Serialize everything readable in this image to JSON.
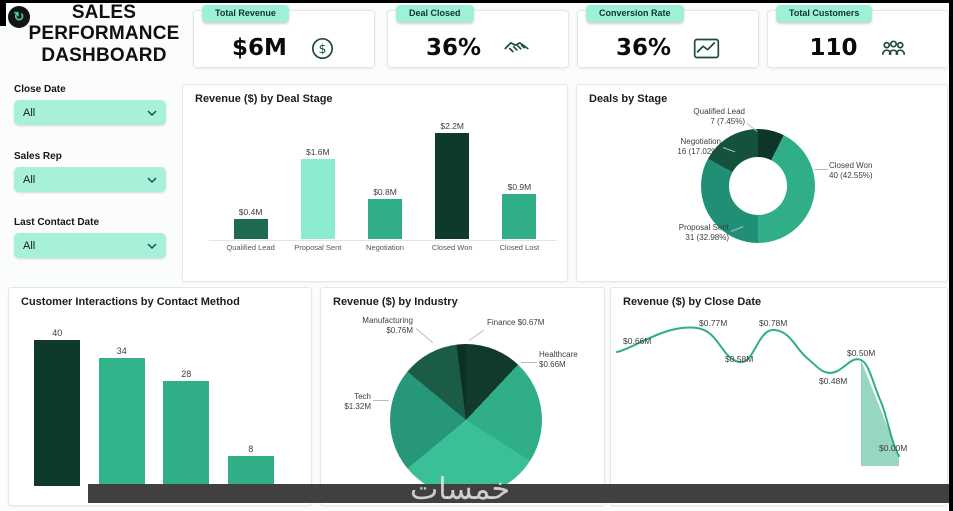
{
  "page": {
    "watermark": "خمسات"
  },
  "header": {
    "logo_glyph": "↻",
    "title_lines": [
      "SALES",
      "PERFORMANCE",
      "DASHBOARD"
    ]
  },
  "kpis": [
    {
      "label": "Total Revenue",
      "value": "$6M",
      "icon": "dollar-circle-icon"
    },
    {
      "label": "Deal Closed",
      "value": "36%",
      "icon": "handshake-icon"
    },
    {
      "label": "Conversion Rate",
      "value": "36%",
      "icon": "trend-line-icon"
    },
    {
      "label": "Total Customers",
      "value": "110",
      "icon": "people-icon"
    }
  ],
  "filters": [
    {
      "label": "Close Date",
      "value": "All"
    },
    {
      "label": "Sales Rep",
      "value": "All"
    },
    {
      "label": "Last Contact Date",
      "value": "All"
    }
  ],
  "theme": {
    "accent_mint": "#9ff0d8",
    "accent_dark_green": "#0d3a2d",
    "accent_green": "#2fae88",
    "accent_light_mint": "#8debcf"
  },
  "chart_data": [
    {
      "id": "revenue_by_deal_stage",
      "type": "bar",
      "title": "Revenue ($) by Deal Stage",
      "categories": [
        "Qualified Lead",
        "Proposal Sent",
        "Negotiation",
        "Closed Won",
        "Closed Lost"
      ],
      "values": [
        0.4,
        1.6,
        0.8,
        2.2,
        0.9
      ],
      "value_labels": [
        "$0.4M",
        "$1.6M",
        "$0.8M",
        "$2.2M",
        "$0.9M"
      ],
      "unit": "$M",
      "ylim": [
        0,
        2.35
      ],
      "bar_colors": [
        "#1c6b52",
        "#8debcf",
        "#2fae88",
        "#0d3a2d",
        "#2fae88"
      ]
    },
    {
      "id": "deals_by_stage",
      "type": "donut",
      "title": "Deals by Stage",
      "slices": [
        {
          "label": "Qualified Lead",
          "value": 7,
          "pct": 7.45,
          "value_text": "7 (7.45%)",
          "color": "#0d352a"
        },
        {
          "label": "Closed Won",
          "value": 40,
          "pct": 42.55,
          "value_text": "40 (42.55%)",
          "color": "#2fae88"
        },
        {
          "label": "Proposal Sent",
          "value": 31,
          "pct": 32.98,
          "value_text": "31 (32.98%)",
          "color": "#1f8f75"
        },
        {
          "label": "Negotiation",
          "value": 16,
          "pct": 17.02,
          "value_text": "16 (17.02%)",
          "color": "#14523f"
        }
      ]
    },
    {
      "id": "interactions_by_contact_method",
      "type": "bar",
      "title": "Customer Interactions by Contact Method",
      "values": [
        40,
        34,
        28,
        8
      ],
      "value_labels": [
        "40",
        "34",
        "28",
        "8"
      ],
      "ylim": [
        0,
        42
      ],
      "bar_colors": [
        "#0d3a2d",
        "#31b48c",
        "#2fae88",
        "#2fae88"
      ]
    },
    {
      "id": "revenue_by_industry",
      "type": "pie",
      "title": "Revenue ($) by Industry",
      "slices": [
        {
          "label": "Finance",
          "value": 0.67,
          "value_text": "$0.67M",
          "pct": 12,
          "color": "#113a2c"
        },
        {
          "label": "Healthcare",
          "value": 0.66,
          "value_text": "$0.66M",
          "pct": 22,
          "color": "#2fae88"
        },
        {
          "label": "",
          "value_text": "",
          "pct": 30,
          "color": "#3abf97"
        },
        {
          "label": "Tech",
          "value": 1.32,
          "value_text": "$1.32M",
          "pct": 22,
          "color": "#27977c"
        },
        {
          "label": "Manufacturing",
          "value": 0.76,
          "value_text": "$0.76M",
          "pct": 12,
          "color": "#1b5c47"
        },
        {
          "label": "",
          "value_text": "",
          "pct": 2,
          "color": "#0d3026"
        }
      ]
    },
    {
      "id": "revenue_by_close_date",
      "type": "line",
      "title": "Revenue ($) by Close Date",
      "values": [
        0.66,
        0.77,
        0.58,
        0.78,
        0.48,
        0.5,
        0.0
      ],
      "point_labels": [
        "$0.66M",
        "$0.77M",
        "$0.58M",
        "$0.78M",
        "$0.48M",
        "$0.50M",
        "$0.00M"
      ],
      "line_color": "#2fae88",
      "area_color": "rgba(47,174,136,0.5)"
    }
  ]
}
